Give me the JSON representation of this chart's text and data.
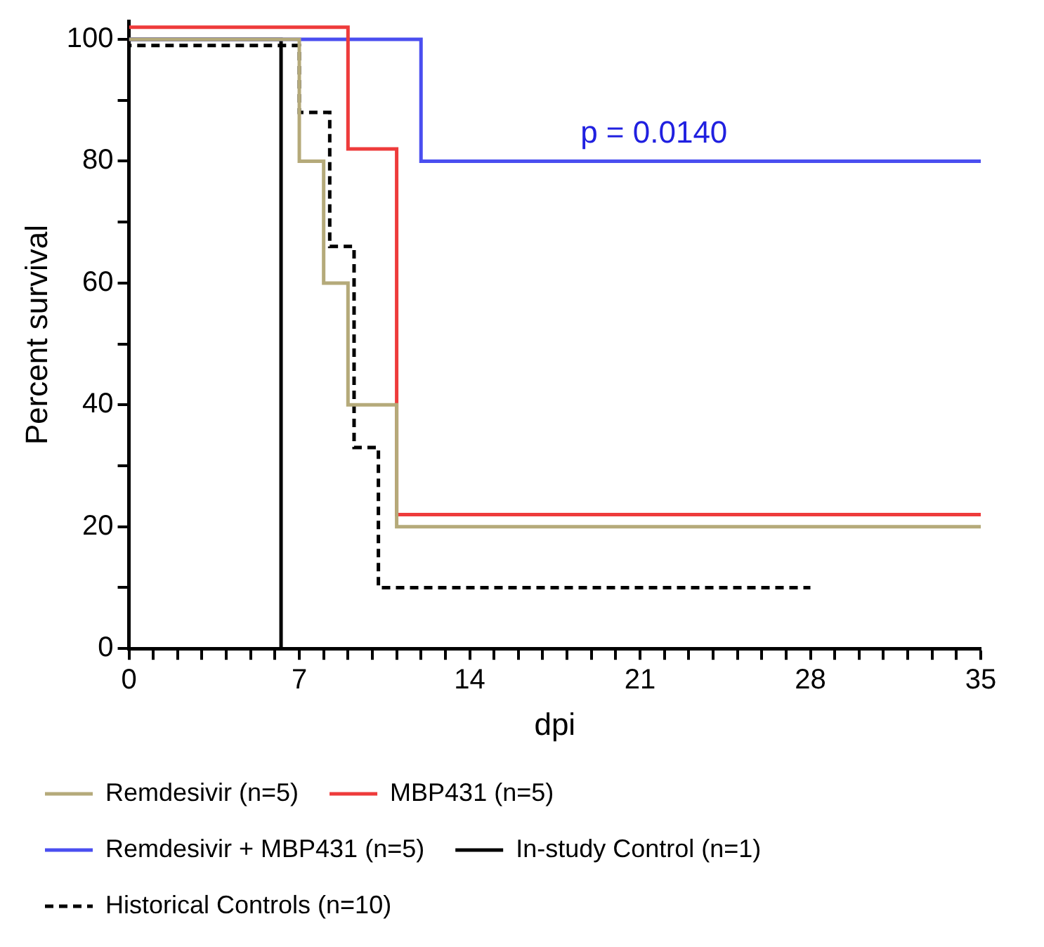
{
  "chart_data": {
    "type": "step",
    "xlabel": "dpi",
    "ylabel": "Percent survival",
    "xlim": [
      0,
      35
    ],
    "ylim": [
      0,
      103
    ],
    "xticks": [
      0,
      {
        "value": 1,
        "label": null
      },
      {
        "value": 2,
        "label": null
      },
      {
        "value": 3,
        "label": null
      },
      {
        "value": 4,
        "label": null
      },
      {
        "value": 5,
        "label": null
      },
      {
        "value": 6,
        "label": null
      },
      7,
      {
        "value": 8,
        "label": null
      },
      {
        "value": 9,
        "label": null
      },
      {
        "value": 10,
        "label": null
      },
      {
        "value": 11,
        "label": null
      },
      {
        "value": 12,
        "label": null
      },
      {
        "value": 13,
        "label": null
      },
      14,
      {
        "value": 15,
        "label": null
      },
      {
        "value": 16,
        "label": null
      },
      {
        "value": 17,
        "label": null
      },
      {
        "value": 18,
        "label": null
      },
      {
        "value": 19,
        "label": null
      },
      {
        "value": 20,
        "label": null
      },
      21,
      {
        "value": 22,
        "label": null
      },
      {
        "value": 23,
        "label": null
      },
      {
        "value": 24,
        "label": null
      },
      {
        "value": 25,
        "label": null
      },
      {
        "value": 26,
        "label": null
      },
      {
        "value": 27,
        "label": null
      },
      28,
      {
        "value": 29,
        "label": null
      },
      {
        "value": 30,
        "label": null
      },
      {
        "value": 31,
        "label": null
      },
      {
        "value": 32,
        "label": null
      },
      {
        "value": 33,
        "label": null
      },
      {
        "value": 34,
        "label": null
      },
      35
    ],
    "yticks": [
      0,
      {
        "value": 10,
        "label": null
      },
      20,
      {
        "value": 30,
        "label": null
      },
      40,
      {
        "value": 50,
        "label": null
      },
      60,
      {
        "value": 70,
        "label": null
      },
      80,
      {
        "value": 90,
        "label": null
      },
      100
    ],
    "grid": false,
    "legend": "bottom",
    "series": [
      {
        "name": "Remdesivir (n=5)",
        "color": "#b5aa7a",
        "x": [
          0,
          7,
          8,
          9,
          11,
          35
        ],
        "values": [
          100,
          80,
          60,
          40,
          20,
          20
        ]
      },
      {
        "name": "MBP431 (n=5)",
        "color": "#ee3b3b",
        "x": [
          0,
          9,
          11,
          35
        ],
        "values": [
          102,
          82,
          22,
          22
        ]
      },
      {
        "name": "Remdesivir + MBP431 (n=5)",
        "color": "#4a4ef0",
        "x": [
          0,
          12,
          35
        ],
        "values": [
          100,
          80,
          80
        ]
      },
      {
        "name": "In-study Control (n=1)",
        "color": "#000000",
        "x": [
          0,
          6.25
        ],
        "values": [
          100,
          0
        ]
      },
      {
        "name": "Historical Controls (n=10)",
        "color": "#000000",
        "line_style": "dashed",
        "x": [
          0,
          7,
          8.25,
          9.25,
          10.25,
          28
        ],
        "values": [
          99,
          88,
          66,
          33,
          10,
          10
        ]
      }
    ],
    "annotations": [
      "p = 0.0140"
    ]
  }
}
